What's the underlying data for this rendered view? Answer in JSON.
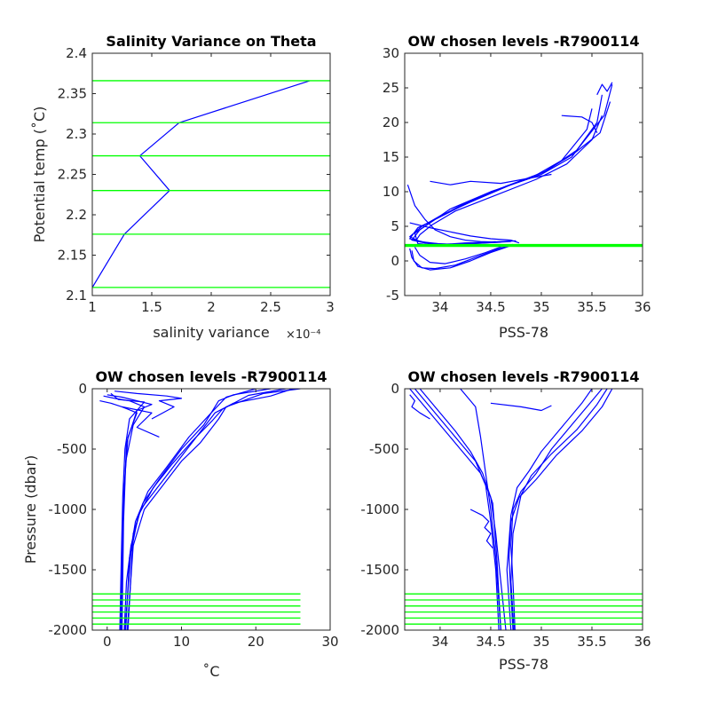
{
  "chart_data": [
    {
      "type": "line",
      "title": "Salinity Variance on Theta",
      "xlabel": "salinity variance",
      "x_exponent_label": "×10⁻⁴",
      "ylabel": "Potential temp (˚C)",
      "xlim": [
        1,
        3
      ],
      "ylim": [
        2.1,
        2.4
      ],
      "xticks": [
        1,
        1.5,
        2,
        2.5,
        3
      ],
      "xtick_labels": [
        "1",
        "1.5",
        "2",
        "2.5",
        "3"
      ],
      "yticks": [
        2.1,
        2.15,
        2.2,
        2.25,
        2.3,
        2.35,
        2.4
      ],
      "ytick_labels": [
        "2.1",
        "2.15",
        "2.2",
        "2.25",
        "2.3",
        "2.35",
        "2.4"
      ],
      "series": [
        {
          "color": "#0000ff",
          "x": [
            1.0,
            1.27,
            1.65,
            1.4,
            1.73,
            2.83
          ],
          "y": [
            2.11,
            2.176,
            2.23,
            2.273,
            2.314,
            2.366
          ]
        }
      ],
      "hlines": {
        "color": "#00ff00",
        "y": [
          2.11,
          2.176,
          2.23,
          2.273,
          2.314,
          2.366
        ]
      }
    },
    {
      "type": "line",
      "title": "OW chosen levels -R7900114",
      "xlabel": "PSS-78",
      "ylabel": "",
      "xlim": [
        33.65,
        36
      ],
      "ylim": [
        -5,
        30
      ],
      "xticks": [
        34,
        34.5,
        35,
        35.5,
        36
      ],
      "xtick_labels": [
        "34",
        "34.5",
        "35",
        "35.5",
        "36"
      ],
      "yticks": [
        -5,
        0,
        5,
        10,
        15,
        20,
        25,
        30
      ],
      "ytick_labels": [
        "-5",
        "0",
        "5",
        "10",
        "15",
        "20",
        "25",
        "30"
      ],
      "series": [
        {
          "color": "#0000ff",
          "x": [
            35.6,
            35.55,
            35.3,
            35.0,
            34.6,
            34.2,
            33.95,
            33.8,
            33.72,
            33.85,
            34.1,
            34.5,
            34.75
          ],
          "y": [
            24.0,
            20.0,
            15.0,
            12.5,
            10.5,
            8.0,
            6.0,
            4.5,
            3.0,
            2.6,
            2.4,
            2.7,
            2.9
          ]
        },
        {
          "color": "#0000ff",
          "x": [
            35.7,
            35.62,
            35.35,
            35.05,
            34.7,
            34.3,
            34.0,
            33.82,
            33.7,
            33.8,
            34.1,
            34.45,
            34.7
          ],
          "y": [
            25.5,
            21.0,
            16.0,
            13.0,
            11.0,
            8.5,
            6.5,
            5.0,
            3.5,
            2.8,
            2.3,
            2.6,
            2.8
          ]
        },
        {
          "color": "#0000ff",
          "x": [
            35.5,
            35.45,
            35.2,
            34.9,
            34.5,
            34.1,
            33.9,
            33.75,
            33.78,
            34.0,
            34.3,
            34.6
          ],
          "y": [
            22.0,
            19.0,
            14.5,
            12.0,
            10.0,
            7.5,
            5.5,
            4.0,
            2.5,
            2.2,
            2.5,
            2.7
          ]
        },
        {
          "color": "#0000ff",
          "x": [
            35.68,
            35.58,
            35.32,
            35.02,
            34.65,
            34.25,
            33.98,
            33.78,
            33.7,
            33.9,
            34.2,
            34.55
          ],
          "y": [
            23.0,
            18.5,
            15.5,
            12.8,
            10.8,
            8.2,
            6.2,
            4.8,
            3.2,
            2.5,
            2.4,
            2.8
          ]
        },
        {
          "color": "#0000ff",
          "x": [
            35.6,
            35.5,
            35.25,
            34.95,
            34.55,
            34.15,
            33.92,
            33.8,
            33.76,
            33.95,
            34.25,
            34.65
          ],
          "y": [
            21.0,
            17.5,
            14.0,
            11.8,
            9.5,
            7.2,
            5.2,
            3.8,
            2.9,
            2.3,
            2.6,
            2.8
          ]
        },
        {
          "color": "#0000ff",
          "x": [
            33.68,
            33.75,
            33.85,
            33.95,
            34.1,
            34.25,
            34.4,
            34.6
          ],
          "y": [
            11.0,
            8.0,
            6.0,
            4.5,
            3.5,
            3.0,
            2.8,
            2.7
          ]
        },
        {
          "color": "#0000ff",
          "x": [
            33.7,
            33.72,
            33.78,
            33.9,
            34.1,
            34.3,
            34.5,
            34.7
          ],
          "y": [
            1.8,
            0.5,
            -0.8,
            -1.3,
            -1.0,
            0.0,
            1.2,
            2.2
          ]
        },
        {
          "color": "#0000ff",
          "x": [
            33.72,
            33.74,
            33.82,
            33.95,
            34.15,
            34.35,
            34.55,
            34.72
          ],
          "y": [
            1.5,
            0.0,
            -1.0,
            -1.1,
            -0.6,
            0.5,
            1.6,
            2.4
          ]
        },
        {
          "color": "#0000ff",
          "x": [
            33.75,
            33.8,
            33.9,
            34.05,
            34.25,
            34.45,
            34.65
          ],
          "y": [
            2.0,
            0.8,
            -0.2,
            -0.4,
            0.3,
            1.2,
            2.3
          ]
        },
        {
          "color": "#0000ff",
          "x": [
            33.7,
            33.9,
            34.1,
            34.3,
            34.5,
            34.7,
            34.78
          ],
          "y": [
            5.5,
            4.8,
            4.2,
            3.6,
            3.2,
            3.0,
            2.6
          ]
        },
        {
          "color": "#0000ff",
          "x": [
            33.9,
            34.1,
            34.3,
            34.6,
            34.9,
            35.1
          ],
          "y": [
            11.5,
            11.0,
            11.5,
            11.2,
            12.0,
            12.5
          ]
        },
        {
          "color": "#0000ff",
          "x": [
            35.2,
            35.4,
            35.5,
            35.55
          ],
          "y": [
            21.0,
            20.8,
            20.0,
            18.5
          ]
        },
        {
          "color": "#0000ff",
          "x": [
            35.55,
            35.6,
            35.65,
            35.7
          ],
          "y": [
            24.0,
            25.5,
            24.5,
            25.8
          ]
        }
      ],
      "hlines": {
        "color": "#00ff00",
        "y": [
          2.11,
          2.176,
          2.23,
          2.273,
          2.314,
          2.366
        ]
      }
    },
    {
      "type": "line",
      "title": "OW chosen levels -R7900114",
      "xlabel": "˚C",
      "ylabel": "Pressure (dbar)",
      "xlim": [
        -2,
        30
      ],
      "ylim": [
        -2000,
        0
      ],
      "xticks": [
        0,
        10,
        20,
        30
      ],
      "xtick_labels": [
        "0",
        "10",
        "20",
        "30"
      ],
      "yticks": [
        -2000,
        -1500,
        -1000,
        -500,
        0
      ],
      "ytick_labels": [
        "-2000",
        "-1500",
        "-1000",
        "-500",
        "0"
      ],
      "series": [
        {
          "color": "#0000ff",
          "x": [
            25.0,
            22.0,
            17.0,
            14.5,
            12.0,
            9.5,
            7.0,
            4.5,
            3.2,
            2.6,
            2.3
          ],
          "y": [
            0,
            -60,
            -120,
            -200,
            -400,
            -600,
            -800,
            -1000,
            -1300,
            -1600,
            -2000
          ]
        },
        {
          "color": "#0000ff",
          "x": [
            22.0,
            17.0,
            15.0,
            14.0,
            11.0,
            8.0,
            5.5,
            3.8,
            3.0,
            2.5
          ],
          "y": [
            0,
            -50,
            -100,
            -200,
            -400,
            -650,
            -850,
            -1100,
            -1400,
            -2000
          ]
        },
        {
          "color": "#0000ff",
          "x": [
            26.0,
            21.0,
            16.0,
            15.0,
            12.5,
            10.0,
            7.5,
            5.0,
            3.5,
            2.7
          ],
          "y": [
            0,
            -40,
            -150,
            -250,
            -450,
            -600,
            -800,
            -1000,
            -1300,
            -2000
          ]
        },
        {
          "color": "#0000ff",
          "x": [
            20.0,
            16.0,
            14.0,
            13.0,
            10.0,
            7.0,
            4.8,
            3.5,
            2.8
          ],
          "y": [
            0,
            -70,
            -200,
            -300,
            -500,
            -750,
            -950,
            -1200,
            -2000
          ]
        },
        {
          "color": "#0000ff",
          "x": [
            24.0,
            19.0,
            15.5,
            14.2,
            11.5,
            8.8,
            6.2,
            4.2,
            3.2,
            2.4
          ],
          "y": [
            0,
            -55,
            -170,
            -260,
            -430,
            -620,
            -820,
            -1050,
            -1350,
            -2000
          ]
        },
        {
          "color": "#0000ff",
          "x": [
            -0.5,
            1.0,
            3.0,
            5.0,
            3.5,
            2.5,
            2.2,
            2.0,
            1.8
          ],
          "y": [
            -60,
            -80,
            -100,
            -150,
            -300,
            -600,
            -1000,
            -1500,
            -2000
          ]
        },
        {
          "color": "#0000ff",
          "x": [
            -1.0,
            0.5,
            2.0,
            4.0,
            2.8,
            2.3,
            2.0,
            1.9
          ],
          "y": [
            -100,
            -120,
            -150,
            -200,
            -400,
            -800,
            -1300,
            -2000
          ]
        },
        {
          "color": "#0000ff",
          "x": [
            0.5,
            1.5,
            5.0,
            3.0,
            2.4,
            2.1,
            1.9,
            1.7
          ],
          "y": [
            -40,
            -90,
            -110,
            -250,
            -500,
            -900,
            -1400,
            -2000
          ]
        },
        {
          "color": "#0000ff",
          "x": [
            0.0,
            2.0,
            6.0,
            4.0,
            2.6,
            2.2,
            2.0
          ],
          "y": [
            -50,
            -70,
            -130,
            -180,
            -450,
            -1100,
            -2000
          ]
        },
        {
          "color": "#0000ff",
          "x": [
            1.0,
            4.0,
            8.0,
            10.0,
            7.0,
            9.0,
            6.0
          ],
          "y": [
            -20,
            -40,
            -60,
            -80,
            -100,
            -150,
            -250
          ]
        },
        {
          "color": "#0000ff",
          "x": [
            2.0,
            6.0,
            4.0,
            7.0
          ],
          "y": [
            -150,
            -200,
            -320,
            -400
          ]
        }
      ],
      "hlines": {
        "color": "#00ff00",
        "x_range": [
          -2,
          26
        ],
        "y": [
          -1700,
          -1750,
          -1800,
          -1850,
          -1900,
          -1950
        ]
      }
    },
    {
      "type": "line",
      "title": "OW chosen levels -R7900114",
      "xlabel": "PSS-78",
      "ylabel": "",
      "xlim": [
        33.65,
        36
      ],
      "ylim": [
        -2000,
        0
      ],
      "xticks": [
        34,
        34.5,
        35,
        35.5,
        36
      ],
      "xtick_labels": [
        "34",
        "34.5",
        "35",
        "35.5",
        "36"
      ],
      "yticks": [
        -2000,
        -1500,
        -1000,
        -500,
        0
      ],
      "ytick_labels": [
        "-2000",
        "-1500",
        "-1000",
        "-500",
        "0"
      ],
      "series": [
        {
          "color": "#0000ff",
          "x": [
            35.6,
            35.5,
            35.3,
            35.1,
            34.95,
            34.8,
            34.72,
            34.7,
            34.72,
            34.74
          ],
          "y": [
            0,
            -100,
            -300,
            -500,
            -700,
            -850,
            -1000,
            -1300,
            -1600,
            -2000
          ]
        },
        {
          "color": "#0000ff",
          "x": [
            35.7,
            35.6,
            35.4,
            35.15,
            34.95,
            34.78,
            34.7,
            34.68,
            34.7,
            34.72
          ],
          "y": [
            0,
            -150,
            -350,
            -550,
            -750,
            -900,
            -1100,
            -1400,
            -1700,
            -2000
          ]
        },
        {
          "color": "#0000ff",
          "x": [
            35.5,
            35.4,
            35.2,
            35.0,
            34.88,
            34.76,
            34.7,
            34.66,
            34.7
          ],
          "y": [
            0,
            -120,
            -320,
            -520,
            -680,
            -820,
            -1050,
            -1500,
            -2000
          ]
        },
        {
          "color": "#0000ff",
          "x": [
            35.65,
            35.55,
            35.35,
            35.1,
            34.9,
            34.8,
            34.72,
            34.7,
            34.73
          ],
          "y": [
            0,
            -130,
            -340,
            -540,
            -720,
            -880,
            -1200,
            -1600,
            -2000
          ]
        },
        {
          "color": "#0000ff",
          "x": [
            33.7,
            33.8,
            33.95,
            34.1,
            34.25,
            34.4,
            34.5,
            34.55,
            34.6,
            34.65
          ],
          "y": [
            0,
            -100,
            -250,
            -400,
            -550,
            -700,
            -900,
            -1200,
            -1600,
            -2000
          ]
        },
        {
          "color": "#0000ff",
          "x": [
            33.75,
            33.9,
            34.05,
            34.2,
            34.35,
            34.45,
            34.5,
            34.55,
            34.58
          ],
          "y": [
            0,
            -150,
            -300,
            -450,
            -600,
            -800,
            -1100,
            -1500,
            -2000
          ]
        },
        {
          "color": "#0000ff",
          "x": [
            33.8,
            34.0,
            34.15,
            34.3,
            34.42,
            34.52,
            34.56,
            34.6
          ],
          "y": [
            0,
            -200,
            -350,
            -520,
            -700,
            -950,
            -1400,
            -2000
          ]
        },
        {
          "color": "#0000ff",
          "x": [
            34.2,
            34.35,
            34.4,
            34.45,
            34.5,
            34.55,
            34.6
          ],
          "y": [
            0,
            -150,
            -400,
            -700,
            -1000,
            -1400,
            -2000
          ]
        },
        {
          "color": "#0000ff",
          "x": [
            33.7,
            33.75,
            33.72,
            33.8,
            33.9
          ],
          "y": [
            -50,
            -100,
            -150,
            -200,
            -250
          ]
        },
        {
          "color": "#0000ff",
          "x": [
            34.5,
            34.8,
            35.0,
            35.1
          ],
          "y": [
            -120,
            -150,
            -180,
            -140
          ]
        },
        {
          "color": "#0000ff",
          "x": [
            34.3,
            34.42,
            34.48,
            34.44,
            34.5,
            34.46,
            34.52
          ],
          "y": [
            -1000,
            -1050,
            -1100,
            -1150,
            -1200,
            -1260,
            -1320
          ]
        }
      ],
      "hlines": {
        "color": "#00ff00",
        "y": [
          -1700,
          -1750,
          -1800,
          -1850,
          -1900,
          -1950
        ]
      }
    }
  ]
}
